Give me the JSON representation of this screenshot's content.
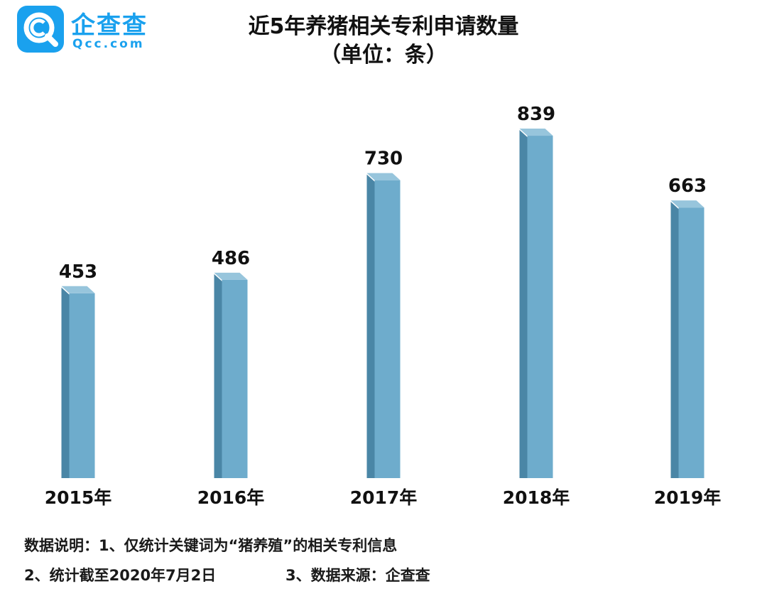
{
  "logo": {
    "name": "企查查",
    "url": "Qcc.com"
  },
  "chart_data": {
    "type": "bar",
    "title": "近5年养猪相关专利申请数量",
    "subtitle": "（单位：条）",
    "categories": [
      "2015年",
      "2016年",
      "2017年",
      "2018年",
      "2019年"
    ],
    "values": [
      453,
      486,
      730,
      839,
      663
    ],
    "ylim": [
      0,
      900
    ],
    "grid": false,
    "legend": "none",
    "colors": {
      "bar_front": "#6eaccc",
      "bar_side": "#4a86a6",
      "bar_top": "#97c5dc"
    }
  },
  "notes": {
    "line1": "数据说明：1、仅统计关键词为“猪养殖”的相关专利信息",
    "line2": "2、统计截至2020年7月2日",
    "line3": "3、数据来源：企查查"
  }
}
